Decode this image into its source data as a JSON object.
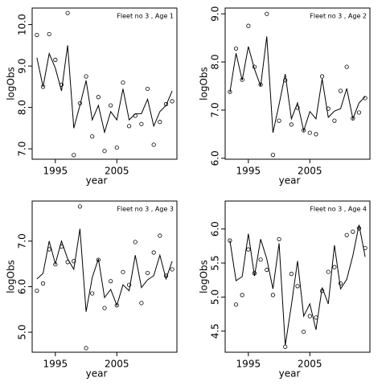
{
  "chart_data": [
    {
      "type": "scatter",
      "title": "Fleet no 3 , Age 1",
      "xlabel": "year",
      "ylabel": "logObs",
      "x": [
        1992,
        1993,
        1994,
        1995,
        1996,
        1997,
        1998,
        1999,
        2000,
        2001,
        2002,
        2003,
        2004,
        2005,
        2006,
        2007,
        2008,
        2009,
        2010,
        2011,
        2012,
        2013,
        2014
      ],
      "series": [
        {
          "style": "points",
          "color": "#000000",
          "values": [
            9.75,
            8.5,
            9.77,
            9.15,
            8.55,
            10.28,
            6.85,
            8.1,
            8.75,
            7.3,
            8.25,
            6.95,
            8.05,
            7.03,
            8.6,
            7.55,
            7.8,
            7.6,
            8.45,
            7.1,
            7.65,
            8.08,
            8.15
          ]
        },
        {
          "style": "line",
          "color": "#000000",
          "values": [
            9.2,
            8.5,
            9.3,
            8.95,
            8.4,
            9.5,
            7.5,
            8.05,
            8.65,
            7.7,
            8.05,
            7.4,
            7.9,
            7.7,
            8.45,
            7.7,
            7.85,
            7.85,
            8.2,
            7.55,
            7.9,
            8.05,
            8.4
          ]
        }
      ],
      "xlim": [
        1991.23,
        2014.77
      ],
      "xticks": [
        1995,
        2005
      ],
      "ylim": [
        6.75,
        10.4
      ],
      "yticks": [
        {
          "value": 7,
          "label": "7.0"
        },
        {
          "value": 8,
          "label": "8.0"
        },
        {
          "value": 9,
          "label": "9.0"
        },
        {
          "value": 10,
          "label": "10.0"
        }
      ]
    },
    {
      "type": "scatter",
      "title": "Fleet no 3 , Age 2",
      "xlabel": "year",
      "ylabel": "logObs",
      "x": [
        1992,
        1993,
        1994,
        1995,
        1996,
        1997,
        1998,
        1999,
        2000,
        2001,
        2002,
        2003,
        2004,
        2005,
        2006,
        2007,
        2008,
        2009,
        2010,
        2011,
        2012,
        2013,
        2014
      ],
      "series": [
        {
          "style": "points",
          "color": "#000000",
          "values": [
            7.38,
            8.28,
            7.63,
            8.75,
            7.9,
            7.53,
            9.0,
            6.07,
            6.78,
            7.62,
            6.7,
            7.05,
            6.58,
            6.53,
            6.5,
            7.7,
            7.03,
            6.78,
            7.4,
            7.9,
            6.83,
            6.95,
            7.25
          ]
        },
        {
          "style": "line",
          "color": "#000000",
          "values": [
            7.37,
            8.18,
            7.62,
            8.32,
            7.85,
            7.5,
            8.53,
            6.53,
            7.12,
            7.75,
            6.82,
            7.15,
            6.57,
            6.97,
            6.82,
            7.65,
            6.85,
            6.98,
            7.03,
            7.45,
            6.82,
            7.15,
            7.28
          ]
        }
      ],
      "xlim": [
        1991.23,
        2014.77
      ],
      "xticks": [
        1995,
        2005
      ],
      "ylim": [
        5.98,
        9.12
      ],
      "yticks": [
        {
          "value": 6,
          "label": "6.0"
        },
        {
          "value": 7,
          "label": "7.0"
        },
        {
          "value": 8,
          "label": "8.0"
        },
        {
          "value": 9,
          "label": "9.0"
        }
      ]
    },
    {
      "type": "scatter",
      "title": "Fleet no 3 , Age 3",
      "xlabel": "year",
      "ylabel": "logObs",
      "x": [
        1992,
        1993,
        1994,
        1995,
        1996,
        1997,
        1998,
        1999,
        2000,
        2001,
        2002,
        2003,
        2004,
        2005,
        2006,
        2007,
        2008,
        2009,
        2010,
        2011,
        2012,
        2013,
        2014
      ],
      "series": [
        {
          "style": "points",
          "color": "#000000",
          "values": [
            5.91,
            6.07,
            6.82,
            6.49,
            6.88,
            6.54,
            6.56,
            7.76,
            4.65,
            5.85,
            6.59,
            5.53,
            6.12,
            5.59,
            6.32,
            6.04,
            6.98,
            5.64,
            6.3,
            6.75,
            7.12,
            6.24,
            6.38
          ]
        },
        {
          "style": "line",
          "color": "#000000",
          "values": [
            6.17,
            6.29,
            7.0,
            6.5,
            7.0,
            6.61,
            6.38,
            7.27,
            5.45,
            6.2,
            6.61,
            5.76,
            5.94,
            5.59,
            6.04,
            5.91,
            6.69,
            5.98,
            6.15,
            6.24,
            6.69,
            6.17,
            6.56
          ]
        }
      ],
      "xlim": [
        1991.23,
        2014.77
      ],
      "xticks": [
        1995,
        2005
      ],
      "ylim": [
        4.56,
        7.88
      ],
      "yticks": [
        {
          "value": 5,
          "label": "5.0"
        },
        {
          "value": 6,
          "label": "6.0"
        },
        {
          "value": 7,
          "label": "7.0"
        }
      ]
    },
    {
      "type": "scatter",
      "title": "Fleet no 3 , Age 4",
      "xlabel": "year",
      "ylabel": "logObs",
      "x": [
        1992,
        1993,
        1994,
        1995,
        1996,
        1997,
        1998,
        1999,
        2000,
        2001,
        2002,
        2003,
        2004,
        2005,
        2006,
        2007,
        2008,
        2009,
        2010,
        2011,
        2012,
        2013,
        2014
      ],
      "series": [
        {
          "style": "points",
          "color": "#000000",
          "values": [
            5.83,
            4.89,
            5.03,
            5.7,
            5.35,
            5.55,
            5.4,
            5.03,
            5.85,
            4.27,
            5.34,
            5.16,
            4.49,
            4.72,
            4.7,
            5.09,
            5.37,
            5.44,
            5.2,
            5.91,
            5.96,
            6.01,
            5.72
          ]
        },
        {
          "style": "line",
          "color": "#000000",
          "values": [
            5.83,
            5.24,
            5.3,
            5.93,
            5.31,
            5.85,
            5.56,
            5.12,
            5.79,
            4.29,
            4.88,
            5.53,
            4.72,
            4.9,
            4.52,
            5.14,
            4.9,
            5.76,
            5.12,
            5.26,
            5.61,
            6.06,
            5.59
          ]
        }
      ],
      "xlim": [
        1991.23,
        2014.77
      ],
      "xticks": [
        1995,
        2005
      ],
      "ylim": [
        4.19,
        6.41
      ],
      "yticks": [
        {
          "value": 4.5,
          "label": "4.5"
        },
        {
          "value": 5,
          "label": "5.0"
        },
        {
          "value": 5.5,
          "label": "5.5"
        },
        {
          "value": 6,
          "label": "6.0"
        }
      ]
    }
  ]
}
